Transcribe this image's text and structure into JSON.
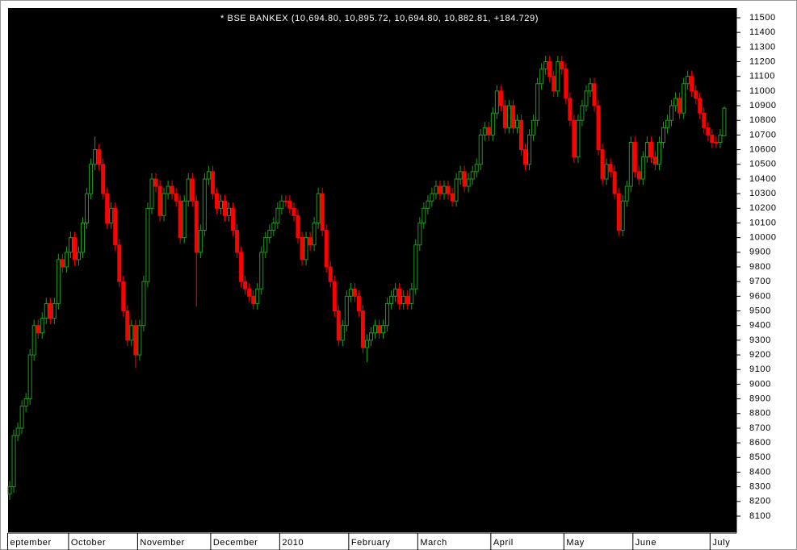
{
  "chart_data": {
    "type": "candlestick",
    "title": "* BSE BANKEX (10,694.80, 10,895.72, 10,694.80, 10,882.81, +184.729)",
    "up_color": "#1f9a1f",
    "down_color": "#ff0000",
    "ylim": [
      7990,
      11566
    ],
    "yticks": [
      8100,
      8200,
      8300,
      8400,
      8500,
      8600,
      8700,
      8800,
      8900,
      9000,
      9100,
      9200,
      9300,
      9400,
      9500,
      9600,
      9700,
      9800,
      9900,
      10000,
      10100,
      10200,
      10300,
      10400,
      10500,
      10600,
      10700,
      10800,
      10900,
      11000,
      11100,
      11200,
      11300,
      11400,
      11500
    ],
    "xlim": [
      -0.4,
      179
    ],
    "xticks": [
      {
        "value": 0,
        "label": "eptember"
      },
      {
        "value": 15,
        "label": "October"
      },
      {
        "value": 32,
        "label": "November"
      },
      {
        "value": 50,
        "label": "December"
      },
      {
        "value": 67,
        "label": "2010"
      },
      {
        "value": 84,
        "label": "February"
      },
      {
        "value": 101,
        "label": "March"
      },
      {
        "value": 119,
        "label": "April"
      },
      {
        "value": 137,
        "label": "May"
      },
      {
        "value": 154,
        "label": "June"
      },
      {
        "value": 173,
        "label": "July"
      }
    ],
    "open": [
      8250,
      8300,
      8650,
      8700,
      8850,
      8900,
      9200,
      9400,
      9350,
      9450,
      9550,
      9450,
      9550,
      9850,
      9800,
      9900,
      10000,
      9850,
      9900,
      10100,
      10300,
      10500,
      10600,
      10500,
      10300,
      10100,
      10200,
      9950,
      9700,
      9500,
      9300,
      9400,
      9200,
      9400,
      9700,
      10200,
      10400,
      10350,
      10150,
      10300,
      10350,
      10300,
      10250,
      10000,
      10250,
      10400,
      10250,
      9900,
      10050,
      10400,
      10450,
      10300,
      10200,
      10250,
      10150,
      10200,
      10050,
      9900,
      9700,
      9650,
      9600,
      9550,
      9650,
      9900,
      10000,
      10050,
      10100,
      10200,
      10250,
      10250,
      10200,
      10150,
      10000,
      9850,
      10000,
      9950,
      10100,
      10300,
      10050,
      9800,
      9700,
      9500,
      9300,
      9400,
      9600,
      9650,
      9600,
      9500,
      9250,
      9300,
      9350,
      9400,
      9350,
      9400,
      9550,
      9600,
      9650,
      9550,
      9600,
      9550,
      9650,
      9950,
      10100,
      10200,
      10250,
      10300,
      10350,
      10300,
      10350,
      10300,
      10250,
      10400,
      10450,
      10350,
      10400,
      10450,
      10500,
      10700,
      10750,
      10700,
      10850,
      11000,
      10900,
      10750,
      10900,
      10750,
      10800,
      10600,
      10500,
      10700,
      10800,
      11050,
      11150,
      11200,
      11100,
      11000,
      11200,
      11150,
      10950,
      10800,
      10550,
      10800,
      10900,
      11000,
      11050,
      10900,
      10600,
      10400,
      10500,
      10450,
      10300,
      10050,
      10250,
      10350,
      10650,
      10450,
      10400,
      10550,
      10650,
      10550,
      10500,
      10650,
      10750,
      10800,
      10900,
      10950,
      10850,
      11050,
      11100,
      11000,
      10950,
      10850,
      10750,
      10700,
      10650,
      10650,
      10694.8
    ],
    "high": [
      8340,
      8690,
      8740,
      8890,
      8940,
      9240,
      9440,
      9440,
      9490,
      9590,
      9590,
      9590,
      9890,
      9890,
      9940,
      10040,
      10040,
      9940,
      10140,
      10340,
      10540,
      10690,
      10640,
      10540,
      10340,
      10240,
      10240,
      9990,
      9740,
      9540,
      9440,
      9440,
      9440,
      9740,
      10240,
      10440,
      10440,
      10390,
      10340,
      10390,
      10390,
      10340,
      10290,
      10290,
      10440,
      10440,
      10290,
      10090,
      10440,
      10490,
      10490,
      10340,
      10290,
      10290,
      10240,
      10240,
      10090,
      9940,
      9740,
      9690,
      9640,
      9690,
      9940,
      10040,
      10090,
      10140,
      10240,
      10290,
      10290,
      10290,
      10240,
      10190,
      10040,
      10040,
      10040,
      10140,
      10340,
      10340,
      10090,
      9840,
      9740,
      9540,
      9440,
      9640,
      9690,
      9690,
      9640,
      9540,
      9340,
      9390,
      9440,
      9440,
      9440,
      9590,
      9640,
      9690,
      9690,
      9640,
      9640,
      9690,
      9990,
      10140,
      10240,
      10290,
      10340,
      10390,
      10390,
      10390,
      10390,
      10340,
      10440,
      10490,
      10490,
      10440,
      10490,
      10540,
      10740,
      10790,
      10790,
      10890,
      11040,
      11040,
      10940,
      10940,
      10940,
      10840,
      10840,
      10640,
      10740,
      10840,
      11090,
      11190,
      11240,
      11240,
      11140,
      11240,
      11240,
      11190,
      10990,
      10840,
      10840,
      10940,
      11040,
      11090,
      11090,
      10940,
      10640,
      10540,
      10540,
      10490,
      10340,
      10290,
      10390,
      10690,
      10690,
      10490,
      10590,
      10690,
      10690,
      10590,
      10690,
      10790,
      10840,
      10940,
      10990,
      10990,
      11090,
      11140,
      11140,
      11040,
      10990,
      10890,
      10790,
      10740,
      10690,
      10740,
      10895.72
    ],
    "low": [
      8210,
      8260,
      8610,
      8660,
      8810,
      8860,
      9160,
      9310,
      9310,
      9410,
      9410,
      9410,
      9510,
      9760,
      9760,
      9860,
      9810,
      9810,
      9860,
      10060,
      10260,
      10460,
      10460,
      10260,
      10060,
      10060,
      9910,
      9660,
      9460,
      9260,
      9260,
      9110,
      9160,
      9360,
      9660,
      10160,
      10310,
      10110,
      10110,
      10260,
      10260,
      10210,
      9960,
      9960,
      10210,
      10210,
      9530,
      9860,
      10010,
      10360,
      10260,
      10160,
      10160,
      10110,
      10110,
      10010,
      9860,
      9660,
      9610,
      9560,
      9510,
      9510,
      9610,
      9860,
      9960,
      10010,
      10060,
      10160,
      10210,
      10160,
      10110,
      9960,
      9810,
      9810,
      9910,
      9910,
      10060,
      10010,
      9760,
      9660,
      9460,
      9260,
      9260,
      9360,
      9560,
      9560,
      9460,
      9210,
      9150,
      9260,
      9310,
      9310,
      9310,
      9360,
      9510,
      9560,
      9510,
      9510,
      9510,
      9510,
      9610,
      9910,
      10060,
      10160,
      10210,
      10260,
      10260,
      10260,
      10260,
      10210,
      10210,
      10360,
      10310,
      10310,
      10360,
      10410,
      10460,
      10660,
      10660,
      10660,
      10810,
      10860,
      10710,
      10710,
      10710,
      10710,
      10560,
      10460,
      10460,
      10660,
      10760,
      11010,
      11110,
      11060,
      10960,
      10960,
      11110,
      10910,
      10760,
      10510,
      10510,
      10760,
      10860,
      10960,
      10860,
      10560,
      10360,
      10360,
      10410,
      10260,
      10010,
      10010,
      10210,
      10310,
      10410,
      10360,
      10360,
      10510,
      10510,
      10460,
      10460,
      10610,
      10710,
      10760,
      10860,
      10810,
      10810,
      11010,
      10960,
      10910,
      10810,
      10710,
      10660,
      10610,
      10610,
      10610,
      10694.8
    ],
    "close": [
      8300,
      8650,
      8700,
      8850,
      8900,
      9200,
      9400,
      9350,
      9450,
      9550,
      9450,
      9550,
      9850,
      9800,
      9900,
      10000,
      9850,
      9900,
      10100,
      10300,
      10500,
      10600,
      10500,
      10300,
      10100,
      10200,
      9950,
      9700,
      9500,
      9300,
      9400,
      9200,
      9400,
      9700,
      10200,
      10400,
      10350,
      10150,
      10300,
      10350,
      10300,
      10250,
      10000,
      10250,
      10400,
      10250,
      9900,
      10050,
      10400,
      10450,
      10300,
      10200,
      10250,
      10150,
      10200,
      10050,
      9900,
      9700,
      9650,
      9600,
      9550,
      9650,
      9900,
      10000,
      10050,
      10100,
      10200,
      10250,
      10250,
      10200,
      10150,
      10000,
      9850,
      10000,
      9950,
      10100,
      10300,
      10050,
      9800,
      9700,
      9500,
      9300,
      9400,
      9600,
      9650,
      9600,
      9500,
      9250,
      9300,
      9350,
      9400,
      9350,
      9400,
      9550,
      9600,
      9650,
      9550,
      9600,
      9550,
      9650,
      9950,
      10100,
      10200,
      10250,
      10300,
      10350,
      10300,
      10350,
      10300,
      10250,
      10400,
      10450,
      10350,
      10400,
      10450,
      10500,
      10700,
      10750,
      10700,
      10850,
      11000,
      10900,
      10750,
      10900,
      10750,
      10800,
      10600,
      10500,
      10700,
      10800,
      11050,
      11150,
      11200,
      11100,
      11000,
      11200,
      11150,
      10950,
      10800,
      10550,
      10800,
      10900,
      11000,
      11050,
      10900,
      10600,
      10400,
      10500,
      10450,
      10300,
      10050,
      10250,
      10350,
      10650,
      10450,
      10400,
      10550,
      10650,
      10550,
      10500,
      10650,
      10750,
      10800,
      10900,
      10950,
      10850,
      11050,
      11100,
      11000,
      10950,
      10850,
      10750,
      10700,
      10650,
      10650,
      10700,
      10882.81
    ]
  }
}
